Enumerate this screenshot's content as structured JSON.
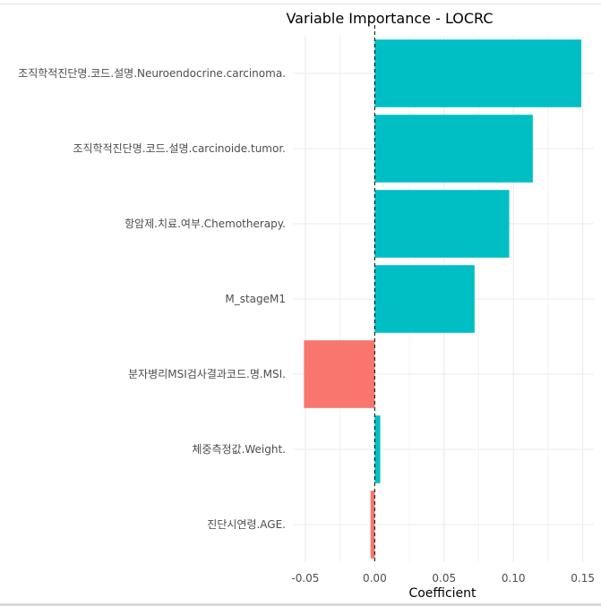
{
  "chart_data": {
    "type": "bar",
    "orientation": "horizontal",
    "title": "Variable Importance - LOCRC",
    "xlabel": "Coefficient",
    "ylabel": "",
    "categories": [
      "조직학적진단명.코드.설명.Neuroendocrine.carcinoma.",
      "조직학적진단명.코드.설명.carcinoide.tumor.",
      "항암제.치료.여부.Chemotherapy.",
      "M_stageM1",
      "분자병리MSI검사결과코드.명.MSI.",
      "체중측정값.Weight.",
      "진단시연령.AGE."
    ],
    "values": [
      0.149,
      0.114,
      0.097,
      0.072,
      -0.051,
      0.004,
      -0.003
    ],
    "xlim": [
      -0.059,
      0.158
    ],
    "xticks": [
      -0.05,
      0.0,
      0.05,
      0.1,
      0.15
    ],
    "xtick_labels": [
      "-0.05",
      "0.00",
      "0.05",
      "0.10",
      "0.15"
    ],
    "reference_line": 0,
    "grid": true,
    "legend": "none",
    "colors": {
      "positive": "#00BFC4",
      "negative": "#F8766D",
      "grid": "#ebebeb"
    }
  }
}
